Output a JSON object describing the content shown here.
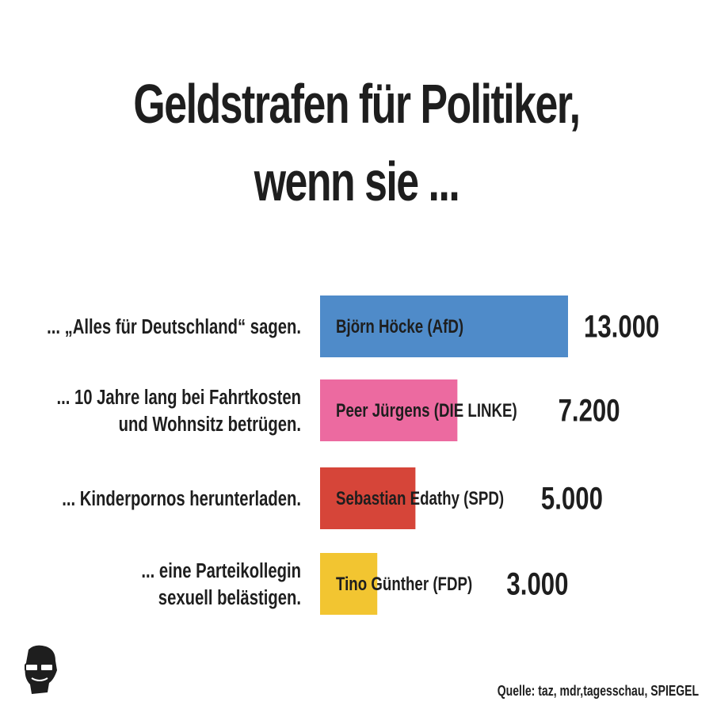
{
  "title_lines": [
    "Geldstrafen für Politiker,",
    "wenn sie ..."
  ],
  "source": "Quelle: taz, mdr,tagesschau, SPIEGEL",
  "chart_data": {
    "type": "bar",
    "orientation": "horizontal",
    "title": "Geldstrafen für Politiker, wenn sie ...",
    "xlim": [
      0,
      13000
    ],
    "categories": [
      {
        "lines": [
          "... „Alles für Deutschland“ sagen."
        ]
      },
      {
        "lines": [
          "... 10 Jahre lang bei Fahrtkosten",
          "und Wohnsitz betrügen."
        ]
      },
      {
        "lines": [
          "... Kinderpornos herunterladen."
        ]
      },
      {
        "lines": [
          "... eine Parteikollegin",
          "sexuell belästigen."
        ]
      }
    ],
    "bar_labels": [
      "Björn Höcke (AfD)",
      "Peer Jürgens (DIE LINKE)",
      "Sebastian Edathy (SPD)",
      "Tino Günther (FDP)"
    ],
    "values": [
      13000,
      7200,
      5000,
      3000
    ],
    "value_labels": [
      "13.000",
      "7.200",
      "5.000",
      "3.000"
    ],
    "colors": [
      "#4f8bc9",
      "#ec6aa0",
      "#d64539",
      "#f2c531"
    ],
    "grid": false,
    "legend": "none"
  }
}
